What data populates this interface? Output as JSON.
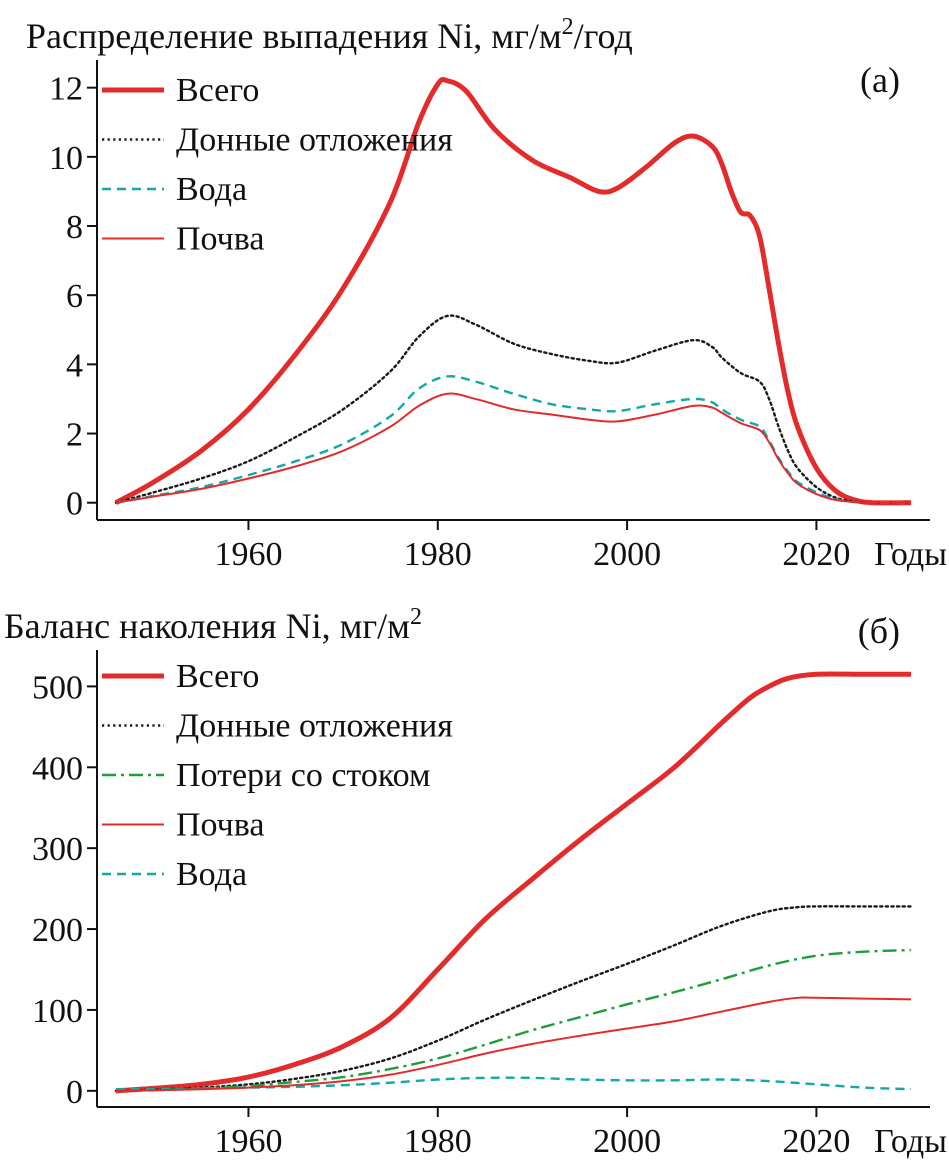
{
  "chart_data": [
    {
      "type": "line",
      "panel": "(a)",
      "title": "Распределение выпадения Ni, мг/м",
      "title_sup": "2",
      "title_suffix": "/год",
      "xlabel": "Годы",
      "ylabel": "",
      "xlim": [
        1944,
        2032
      ],
      "ylim": [
        -0.5,
        12.8
      ],
      "xticks": [
        1960,
        1980,
        2000,
        2020
      ],
      "yticks": [
        0,
        2,
        4,
        6,
        8,
        10,
        12
      ],
      "grid": false,
      "legend_position": "top-left",
      "series": [
        {
          "name": "Всего",
          "color": "#e32b2b",
          "style": "solid-thick",
          "points": [
            [
              1946,
              0
            ],
            [
              1950,
              0.6
            ],
            [
              1955,
              1.5
            ],
            [
              1960,
              2.7
            ],
            [
              1965,
              4.3
            ],
            [
              1970,
              6.2
            ],
            [
              1975,
              8.7
            ],
            [
              1978,
              11.0
            ],
            [
              1980,
              12.1
            ],
            [
              1981,
              12.2
            ],
            [
              1983,
              11.9
            ],
            [
              1986,
              10.8
            ],
            [
              1990,
              9.9
            ],
            [
              1994,
              9.4
            ],
            [
              1997,
              9.0
            ],
            [
              1999,
              9.1
            ],
            [
              2002,
              9.7
            ],
            [
              2005,
              10.4
            ],
            [
              2007,
              10.6
            ],
            [
              2009,
              10.3
            ],
            [
              2010,
              9.8
            ],
            [
              2011,
              9.0
            ],
            [
              2012,
              8.4
            ],
            [
              2013,
              8.3
            ],
            [
              2014,
              7.7
            ],
            [
              2015,
              6.2
            ],
            [
              2016,
              4.6
            ],
            [
              2017,
              3.2
            ],
            [
              2018,
              2.2
            ],
            [
              2020,
              1.0
            ],
            [
              2022,
              0.35
            ],
            [
              2024,
              0.08
            ],
            [
              2026,
              0
            ],
            [
              2030,
              0
            ]
          ]
        },
        {
          "name": "Донные отложения",
          "color": "#1a1a1a",
          "style": "dotted",
          "points": [
            [
              1946,
              0
            ],
            [
              1950,
              0.3
            ],
            [
              1955,
              0.7
            ],
            [
              1960,
              1.2
            ],
            [
              1965,
              1.9
            ],
            [
              1970,
              2.7
            ],
            [
              1975,
              3.8
            ],
            [
              1978,
              4.8
            ],
            [
              1981,
              5.4
            ],
            [
              1984,
              5.15
            ],
            [
              1988,
              4.6
            ],
            [
              1992,
              4.3
            ],
            [
              1996,
              4.1
            ],
            [
              1999,
              4.05
            ],
            [
              2003,
              4.4
            ],
            [
              2007,
              4.7
            ],
            [
              2009,
              4.5
            ],
            [
              2010,
              4.2
            ],
            [
              2012,
              3.75
            ],
            [
              2014,
              3.5
            ],
            [
              2015,
              3.0
            ],
            [
              2016,
              2.2
            ],
            [
              2017,
              1.5
            ],
            [
              2018,
              1.0
            ],
            [
              2020,
              0.45
            ],
            [
              2022,
              0.15
            ],
            [
              2024,
              0.03
            ],
            [
              2026,
              0
            ],
            [
              2030,
              0
            ]
          ]
        },
        {
          "name": "Вода",
          "color": "#12a8a8",
          "style": "dashed",
          "points": [
            [
              1946,
              0
            ],
            [
              1950,
              0.2
            ],
            [
              1955,
              0.45
            ],
            [
              1960,
              0.8
            ],
            [
              1965,
              1.2
            ],
            [
              1970,
              1.7
            ],
            [
              1975,
              2.5
            ],
            [
              1978,
              3.3
            ],
            [
              1981,
              3.65
            ],
            [
              1984,
              3.5
            ],
            [
              1988,
              3.15
            ],
            [
              1992,
              2.85
            ],
            [
              1996,
              2.7
            ],
            [
              1999,
              2.65
            ],
            [
              2003,
              2.85
            ],
            [
              2007,
              3.0
            ],
            [
              2009,
              2.9
            ],
            [
              2010,
              2.7
            ],
            [
              2012,
              2.4
            ],
            [
              2014,
              2.2
            ],
            [
              2015,
              1.8
            ],
            [
              2016,
              1.3
            ],
            [
              2017,
              0.9
            ],
            [
              2018,
              0.6
            ],
            [
              2020,
              0.3
            ],
            [
              2022,
              0.1
            ],
            [
              2024,
              0.02
            ],
            [
              2026,
              0
            ],
            [
              2030,
              0
            ]
          ]
        },
        {
          "name": "Почва",
          "color": "#e32b2b",
          "style": "solid-thin",
          "points": [
            [
              1946,
              0
            ],
            [
              1950,
              0.18
            ],
            [
              1955,
              0.4
            ],
            [
              1960,
              0.7
            ],
            [
              1965,
              1.05
            ],
            [
              1970,
              1.5
            ],
            [
              1975,
              2.2
            ],
            [
              1978,
              2.8
            ],
            [
              1981,
              3.15
            ],
            [
              1984,
              3.0
            ],
            [
              1988,
              2.7
            ],
            [
              1992,
              2.55
            ],
            [
              1996,
              2.4
            ],
            [
              1999,
              2.35
            ],
            [
              2003,
              2.55
            ],
            [
              2007,
              2.8
            ],
            [
              2009,
              2.75
            ],
            [
              2010,
              2.6
            ],
            [
              2012,
              2.3
            ],
            [
              2014,
              2.1
            ],
            [
              2015,
              1.75
            ],
            [
              2016,
              1.25
            ],
            [
              2017,
              0.85
            ],
            [
              2018,
              0.55
            ],
            [
              2020,
              0.25
            ],
            [
              2022,
              0.08
            ],
            [
              2024,
              0.02
            ],
            [
              2026,
              0
            ],
            [
              2030,
              0
            ]
          ]
        }
      ]
    },
    {
      "type": "line",
      "panel": "(б)",
      "title": "Баланс наколения Ni, мг/м",
      "title_sup": "2",
      "title_suffix": "",
      "xlabel": "Годы",
      "ylabel": "",
      "xlim": [
        1944,
        2032
      ],
      "ylim": [
        -20,
        545
      ],
      "xticks": [
        1960,
        1980,
        2000,
        2020
      ],
      "yticks": [
        0,
        100,
        200,
        300,
        400,
        500
      ],
      "grid": false,
      "legend_position": "top-left",
      "series": [
        {
          "name": "Всего",
          "color": "#e32b2b",
          "style": "solid-thick",
          "points": [
            [
              1946,
              0
            ],
            [
              1950,
              3
            ],
            [
              1955,
              8
            ],
            [
              1960,
              17
            ],
            [
              1965,
              33
            ],
            [
              1970,
              55
            ],
            [
              1975,
              90
            ],
            [
              1980,
              150
            ],
            [
              1985,
              212
            ],
            [
              1990,
              262
            ],
            [
              1995,
              310
            ],
            [
              2000,
              355
            ],
            [
              2005,
              400
            ],
            [
              2010,
              455
            ],
            [
              2013,
              486
            ],
            [
              2015,
              500
            ],
            [
              2017,
              510
            ],
            [
              2020,
              515
            ],
            [
              2025,
              515
            ],
            [
              2030,
              515
            ]
          ]
        },
        {
          "name": "Донные отложения",
          "color": "#1a1a1a",
          "style": "dotted",
          "points": [
            [
              1946,
              0
            ],
            [
              1950,
              1.5
            ],
            [
              1955,
              4
            ],
            [
              1960,
              8
            ],
            [
              1965,
              15
            ],
            [
              1970,
              25
            ],
            [
              1975,
              40
            ],
            [
              1980,
              62
            ],
            [
              1985,
              88
            ],
            [
              1990,
              112
            ],
            [
              1995,
              135
            ],
            [
              2000,
              157
            ],
            [
              2005,
              180
            ],
            [
              2010,
              204
            ],
            [
              2015,
              222
            ],
            [
              2018,
              227
            ],
            [
              2020,
              228
            ],
            [
              2025,
              228
            ],
            [
              2030,
              228
            ]
          ]
        },
        {
          "name": "Потери со стоком",
          "color": "#1e9e3a",
          "style": "dashdot",
          "points": [
            [
              1946,
              0
            ],
            [
              1950,
              1
            ],
            [
              1955,
              3
            ],
            [
              1960,
              6
            ],
            [
              1965,
              11
            ],
            [
              1970,
              17
            ],
            [
              1975,
              27
            ],
            [
              1980,
              40
            ],
            [
              1985,
              57
            ],
            [
              1990,
              75
            ],
            [
              1995,
              91
            ],
            [
              2000,
              107
            ],
            [
              2005,
              122
            ],
            [
              2010,
              138
            ],
            [
              2015,
              155
            ],
            [
              2020,
              167
            ],
            [
              2025,
              172
            ],
            [
              2030,
              174
            ]
          ]
        },
        {
          "name": "Почва",
          "color": "#e32b2b",
          "style": "solid-thin",
          "points": [
            [
              1946,
              0
            ],
            [
              1950,
              0.5
            ],
            [
              1955,
              2
            ],
            [
              1960,
              4
            ],
            [
              1965,
              7
            ],
            [
              1970,
              12
            ],
            [
              1975,
              20
            ],
            [
              1980,
              32
            ],
            [
              1985,
              46
            ],
            [
              1990,
              58
            ],
            [
              1995,
              68
            ],
            [
              2000,
              77
            ],
            [
              2005,
              86
            ],
            [
              2010,
              98
            ],
            [
              2015,
              110
            ],
            [
              2018,
              115
            ],
            [
              2020,
              115
            ],
            [
              2025,
              114
            ],
            [
              2030,
              113
            ]
          ]
        },
        {
          "name": "Вода",
          "color": "#12a8a8",
          "style": "dashed",
          "points": [
            [
              1946,
              2
            ],
            [
              1950,
              2
            ],
            [
              1955,
              3
            ],
            [
              1960,
              4
            ],
            [
              1965,
              5
            ],
            [
              1970,
              7
            ],
            [
              1975,
              10
            ],
            [
              1980,
              14
            ],
            [
              1985,
              16
            ],
            [
              1990,
              16
            ],
            [
              1995,
              14
            ],
            [
              2000,
              13
            ],
            [
              2005,
              13
            ],
            [
              2010,
              14
            ],
            [
              2015,
              12
            ],
            [
              2020,
              8
            ],
            [
              2025,
              4
            ],
            [
              2030,
              2
            ]
          ]
        }
      ]
    }
  ]
}
